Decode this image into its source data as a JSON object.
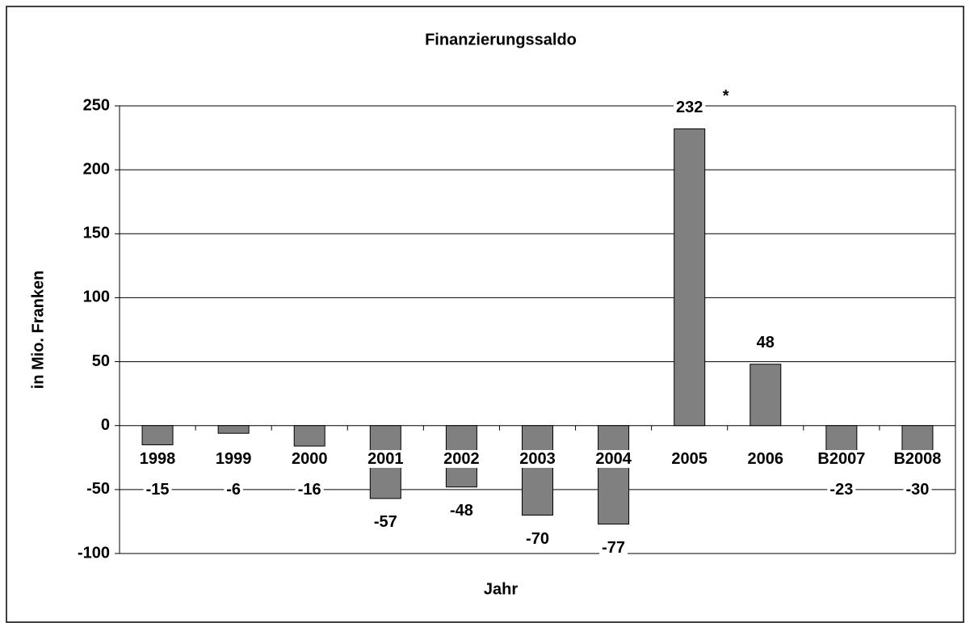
{
  "chart_data": {
    "type": "bar",
    "title": "Finanzierungssaldo",
    "y_label": "in Mio. Franken",
    "x_label": "Jahr",
    "annotation": "*",
    "categories": [
      "1998",
      "1999",
      "2000",
      "2001",
      "2002",
      "2003",
      "2004",
      "2005",
      "2006",
      "B2007",
      "B2008"
    ],
    "values": [
      -15,
      -6,
      -16,
      -57,
      -48,
      -70,
      -77,
      232,
      48,
      -23,
      -30
    ],
    "color": "#808080",
    "ylim": [
      -100,
      250
    ],
    "yticks": [
      -100,
      -50,
      0,
      50,
      100,
      150,
      200,
      250
    ],
    "grid": true
  }
}
